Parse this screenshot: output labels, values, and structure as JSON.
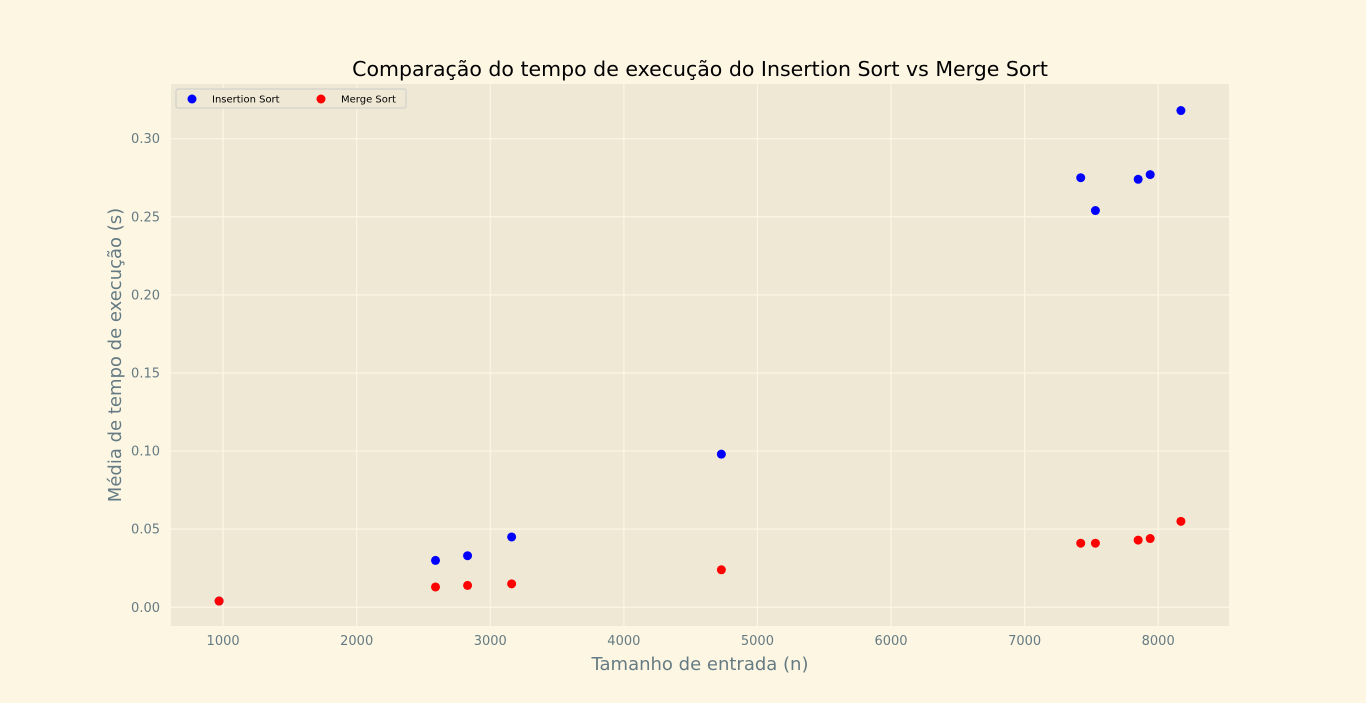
{
  "chart_data": {
    "type": "scatter",
    "title": "Comparação do tempo de execução do Insertion Sort vs Merge Sort",
    "xlabel": "Tamanho de entrada (n)",
    "ylabel": "Média de tempo de execução (s)",
    "xlim": [
      610,
      8530
    ],
    "ylim": [
      -0.012,
      0.335
    ],
    "xticks": [
      1000,
      2000,
      3000,
      4000,
      5000,
      6000,
      7000,
      8000
    ],
    "xtick_labels": [
      "1000",
      "2000",
      "3000",
      "4000",
      "5000",
      "6000",
      "7000",
      "8000"
    ],
    "yticks": [
      0.0,
      0.05,
      0.1,
      0.15,
      0.2,
      0.25,
      0.3
    ],
    "ytick_labels": [
      "0.00",
      "0.05",
      "0.10",
      "0.15",
      "0.20",
      "0.25",
      "0.30"
    ],
    "grid": true,
    "legend_position": "top-left",
    "series": [
      {
        "name": "Insertion Sort",
        "color": "#0000ff",
        "x": [
          970,
          2590,
          2830,
          3160,
          4730,
          7420,
          7530,
          7850,
          7940,
          8170
        ],
        "y": [
          0.004,
          0.03,
          0.033,
          0.045,
          0.098,
          0.275,
          0.254,
          0.274,
          0.277,
          0.318
        ]
      },
      {
        "name": "Merge Sort",
        "color": "#ff0000",
        "x": [
          970,
          2590,
          2830,
          3160,
          4730,
          7420,
          7530,
          7850,
          7940,
          8170
        ],
        "y": [
          0.004,
          0.013,
          0.014,
          0.015,
          0.024,
          0.041,
          0.041,
          0.043,
          0.044,
          0.055
        ]
      }
    ]
  }
}
